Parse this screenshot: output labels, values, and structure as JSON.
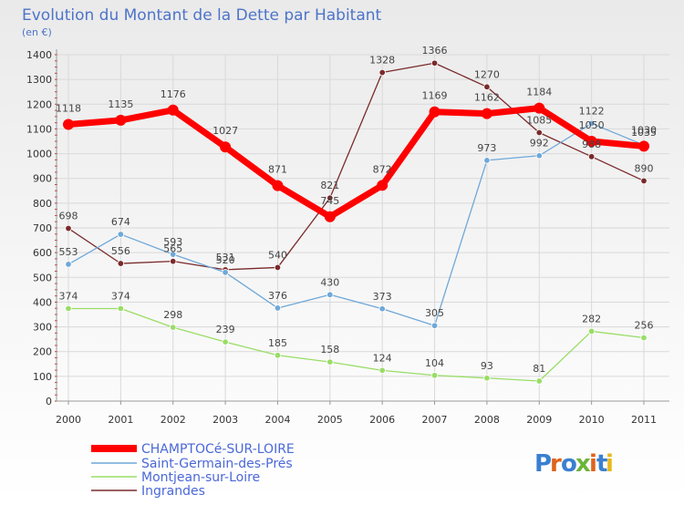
{
  "chart_data": {
    "type": "line",
    "title": "Evolution du Montant de la Dette par Habitant",
    "subtitle": "(en €)",
    "xlabel": "",
    "ylabel": "",
    "ylim": [
      0,
      1400
    ],
    "yticks": [
      0,
      100,
      200,
      300,
      400,
      500,
      600,
      700,
      800,
      900,
      1000,
      1100,
      1200,
      1300,
      1400
    ],
    "grid": true,
    "legend_position": "bottom-left",
    "categories": [
      "2000",
      "2001",
      "2002",
      "2003",
      "2004",
      "2005",
      "2006",
      "2007",
      "2008",
      "2009",
      "2010",
      "2011"
    ],
    "series": [
      {
        "name": "CHAMPTOCé-SUR-LOIRE",
        "color": "#ff0000",
        "values": [
          1118,
          1135,
          1176,
          1027,
          871,
          745,
          872,
          1169,
          1162,
          1184,
          1050,
          1030
        ]
      },
      {
        "name": "Saint-Germain-des-Prés",
        "color": "#6fa8d8",
        "values": [
          553,
          674,
          593,
          520,
          376,
          430,
          373,
          305,
          973,
          992,
          1122,
          1035
        ]
      },
      {
        "name": "Montjean-sur-Loire",
        "color": "#99dd66",
        "values": [
          374,
          374,
          298,
          239,
          185,
          158,
          124,
          104,
          93,
          81,
          282,
          256
        ]
      },
      {
        "name": "Ingrandes",
        "color": "#7a2a2a",
        "values": [
          698,
          556,
          565,
          531,
          540,
          821,
          1328,
          1366,
          1270,
          1085,
          988,
          890
        ]
      }
    ]
  },
  "logo": {
    "letters": [
      "P",
      "r",
      "o",
      "x",
      "i",
      "t",
      "i"
    ],
    "colors": [
      "#3a7fd0",
      "#e0631c",
      "#3a7fd0",
      "#6bb53a",
      "#e0631c",
      "#3a7fd0",
      "#e8b81c"
    ]
  }
}
